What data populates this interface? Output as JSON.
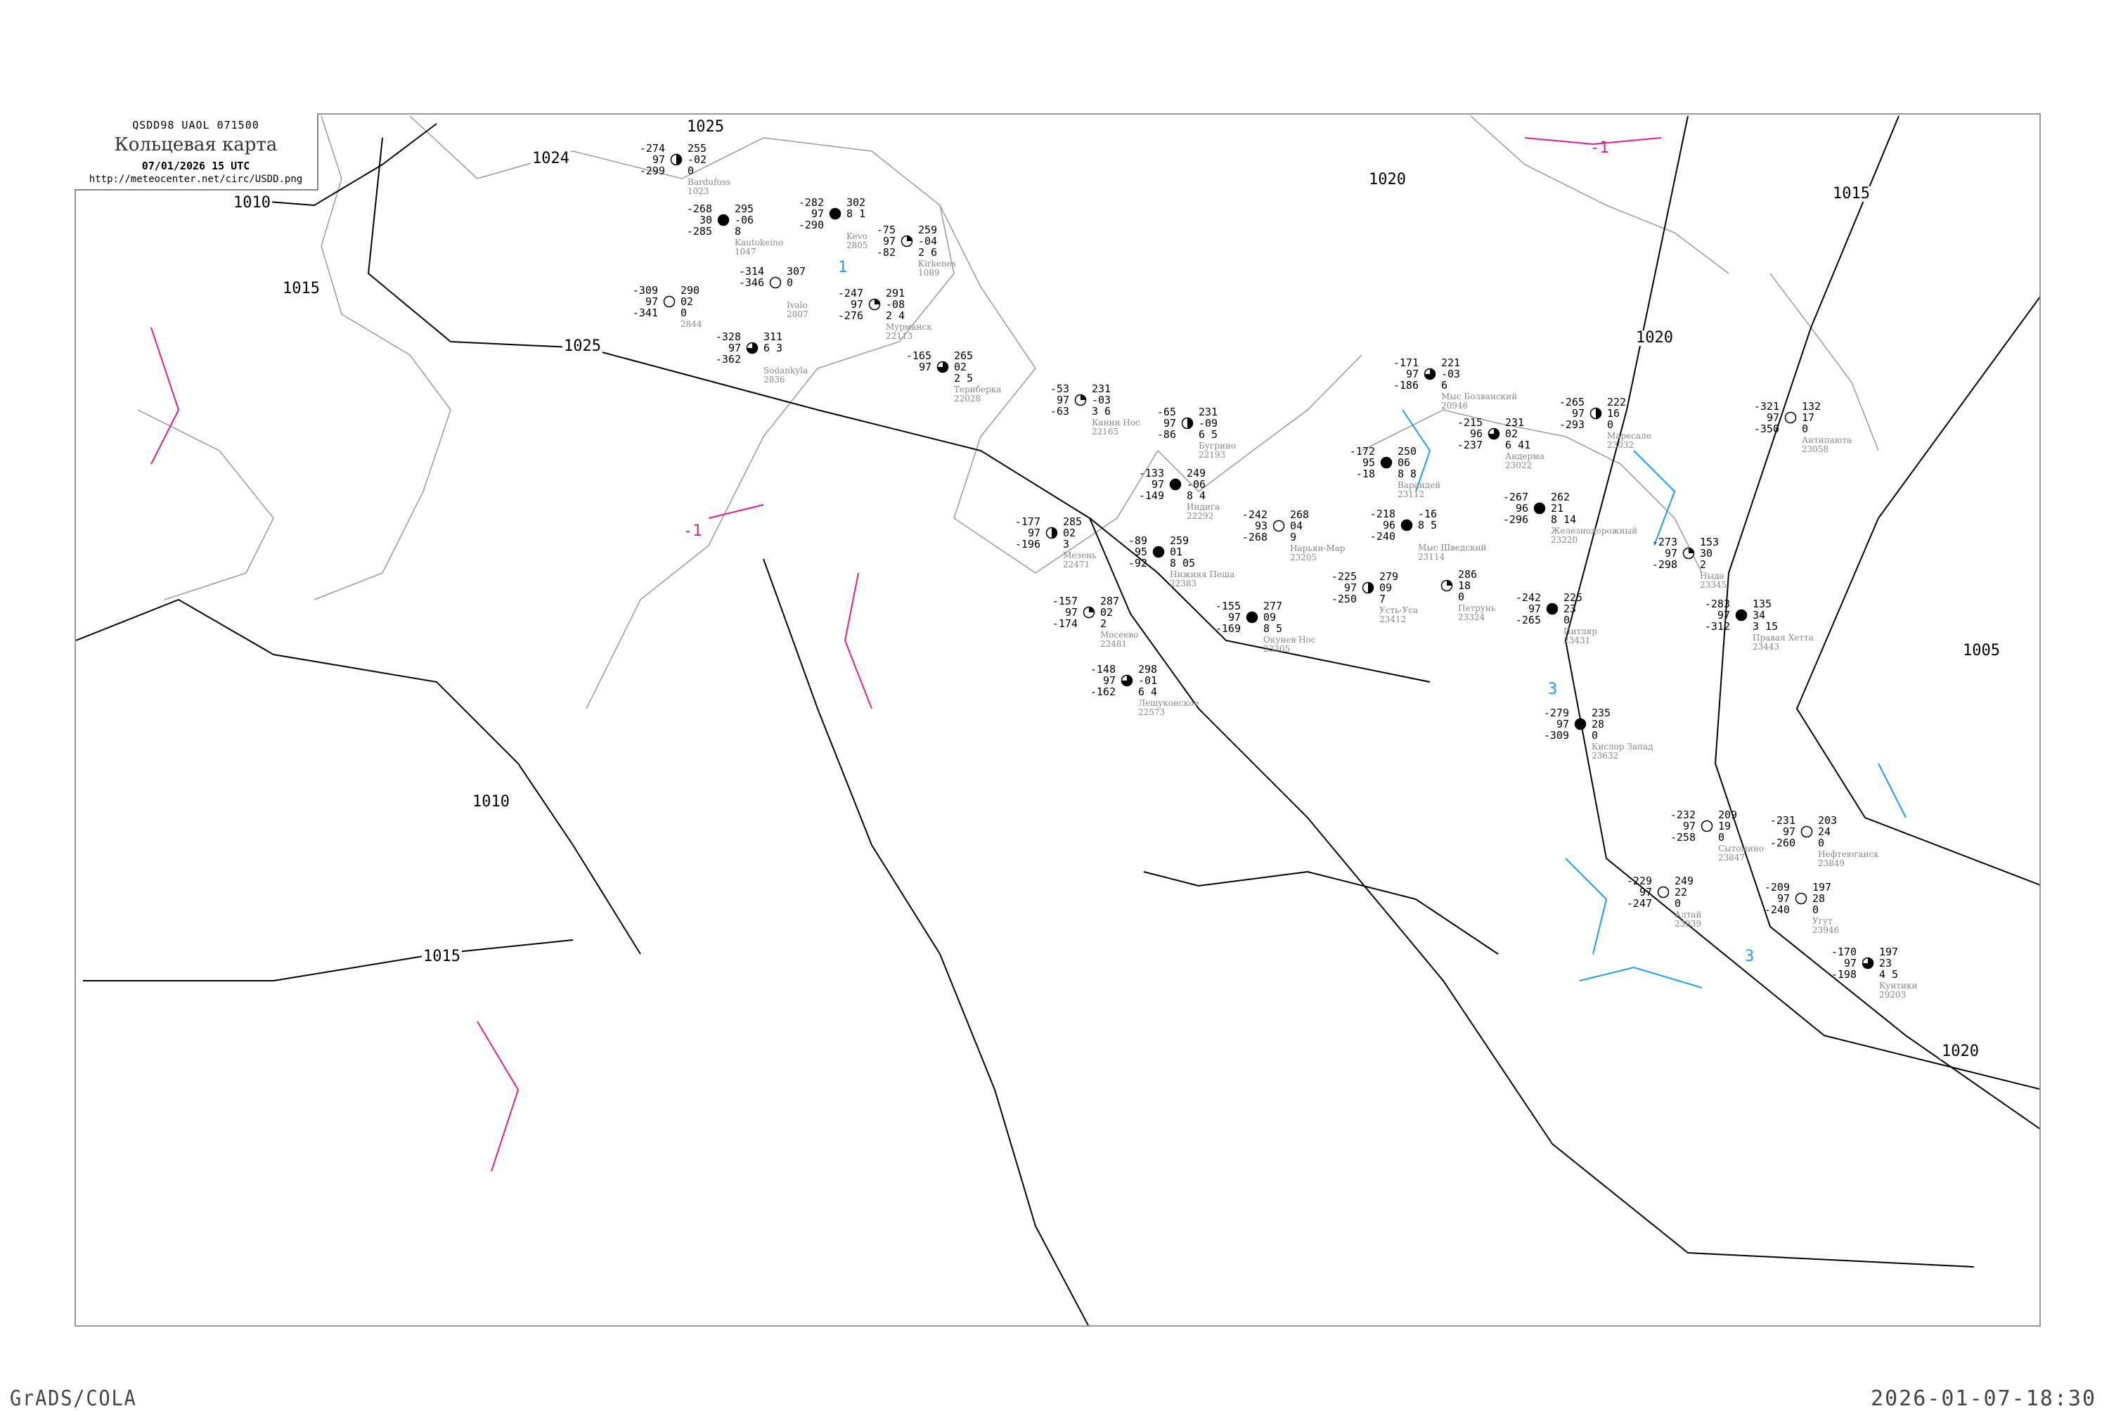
{
  "header": {
    "bulletin_code": "QSDD98   UAOL   071500",
    "title": "Кольцевая карта",
    "datetime": "07/01/2026 15 UTC",
    "url": "http://meteocenter.net/circ/USDD.png"
  },
  "footer": {
    "software": "GrADS/COLA",
    "generated": "2026-01-07-18:30"
  },
  "colors": {
    "isobar": "#000000",
    "coastline": "#9a9a9a",
    "isotherm_cold": "#1e9bff",
    "isotherm_warm": "#e0208a",
    "snow_marker": "#3a8ff0",
    "marker_yellow": "#f5f24a"
  },
  "isobar_labels": [
    "1025",
    "1020",
    "1015",
    "1010",
    "1015",
    "1025",
    "1020",
    "1005",
    "1015",
    "1020",
    "1024",
    "1010"
  ],
  "isotherm_labels": [
    "3",
    "1",
    "3",
    "-1",
    "-1"
  ],
  "stations": [
    {
      "name": "Мыс Болванский",
      "index": "20946",
      "left": [
        "-171",
        "97",
        "-186"
      ],
      "right": [
        "221",
        "-03",
        "6"
      ],
      "cloud": 0.75
    },
    {
      "name": "Андерма",
      "index": "23022",
      "left": [
        "-215",
        "96",
        "-237"
      ],
      "right": [
        "231",
        "02",
        "6 41"
      ],
      "cloud": 0.75
    },
    {
      "name": "Маресале",
      "index": "23032",
      "left": [
        "-265",
        "97",
        "-293"
      ],
      "right": [
        "222",
        "16",
        "0"
      ],
      "cloud": 0.5
    },
    {
      "name": "Варандей",
      "index": "23112",
      "left": [
        "-172",
        "95",
        "-18"
      ],
      "right": [
        "250",
        "06",
        "8 8"
      ],
      "cloud": 1
    },
    {
      "name": "Мыс Шведский",
      "index": "23114",
      "left": [
        "-218",
        "96",
        "-240"
      ],
      "right": [
        "",
        "-16",
        "8 5"
      ],
      "cloud": 1
    },
    {
      "name": "Железнодорожный",
      "index": "23220",
      "left": [
        "-267",
        "96",
        "-296"
      ],
      "right": [
        "262",
        "21",
        "8 14"
      ],
      "cloud": 1
    },
    {
      "name": "Антипаюта",
      "index": "23058",
      "left": [
        "-321",
        "97",
        "-350"
      ],
      "right": [
        "132",
        "17",
        "0"
      ],
      "cloud": 0
    },
    {
      "name": "Канин Нос",
      "index": "22165",
      "left": [
        "-53",
        "97",
        "-63"
      ],
      "right": [
        "231",
        "-03",
        "3 6"
      ],
      "cloud": 0.25
    },
    {
      "name": "Бугрино",
      "index": "22193",
      "left": [
        "-65",
        "97",
        "-86"
      ],
      "right": [
        "231",
        "-09",
        "6 5"
      ],
      "cloud": 0.5
    },
    {
      "name": "Индига",
      "index": "22292",
      "left": [
        "-133",
        "97",
        "-149"
      ],
      "right": [
        "249",
        "-06",
        "8 4"
      ],
      "cloud": 1
    },
    {
      "name": "Нижняя Пеша",
      "index": "22383",
      "left": [
        "-89",
        "95",
        "-92"
      ],
      "right": [
        "259",
        "01",
        "8 05"
      ],
      "cloud": 1
    },
    {
      "name": "Нарьян-Мар",
      "index": "23205",
      "left": [
        "-242",
        "93",
        "-268"
      ],
      "right": [
        "268",
        "04",
        "9"
      ],
      "cloud": 0
    },
    {
      "name": "Мезень",
      "index": "22471",
      "left": [
        "-177",
        "97",
        "-196"
      ],
      "right": [
        "285",
        "02",
        "3"
      ],
      "cloud": 0.5
    },
    {
      "name": "Мосеево",
      "index": "22481",
      "left": [
        "-157",
        "97",
        "-174"
      ],
      "right": [
        "287",
        "02",
        "2"
      ],
      "cloud": 0.25
    },
    {
      "name": "Окунев Нос",
      "index": "23305",
      "left": [
        "-155",
        "97",
        "-169"
      ],
      "right": [
        "277",
        "09",
        "8 5"
      ],
      "cloud": 1
    },
    {
      "name": "Усть-Уса",
      "index": "23412",
      "left": [
        "-225",
        "97",
        "-250"
      ],
      "right": [
        "279",
        "09",
        "7"
      ],
      "cloud": 0.5
    },
    {
      "name": "Лешуконское",
      "index": "22573",
      "left": [
        "-148",
        "97",
        "-162"
      ],
      "right": [
        "298",
        "-01",
        "6 4"
      ],
      "cloud": 0.75
    },
    {
      "name": "Петрунь",
      "index": "23324",
      "left": [
        "",
        "",
        ""
      ],
      "right": [
        "286",
        "18",
        "0"
      ],
      "cloud": 0.25
    },
    {
      "name": "Питляр",
      "index": "23431",
      "left": [
        "-242",
        "97",
        "-265"
      ],
      "right": [
        "225",
        "23",
        "0"
      ],
      "cloud": 1
    },
    {
      "name": "Ныда",
      "index": "23345",
      "left": [
        "-273",
        "97",
        "-298"
      ],
      "right": [
        "153",
        "30",
        "2"
      ],
      "cloud": 0.25
    },
    {
      "name": "Правая Хетта",
      "index": "23443",
      "left": [
        "-283",
        "97",
        "-312"
      ],
      "right": [
        "135",
        "34",
        "3 15"
      ],
      "cloud": 1
    },
    {
      "name": "Кислор Запад",
      "index": "23632",
      "left": [
        "-279",
        "97",
        "-309"
      ],
      "right": [
        "235",
        "28",
        "0"
      ],
      "cloud": 1
    },
    {
      "name": "Bardufoss",
      "index": "1023",
      "left": [
        "-274",
        "97",
        "-299"
      ],
      "right": [
        "255",
        "-02",
        "0"
      ],
      "cloud": 0.5
    },
    {
      "name": "Kautokeino",
      "index": "1047",
      "left": [
        "-268",
        "30",
        "-285"
      ],
      "right": [
        "295",
        "-06",
        "8"
      ],
      "cloud": 1
    },
    {
      "name": "Kevo",
      "index": "2805",
      "left": [
        "-282",
        "97",
        "-290"
      ],
      "right": [
        "302",
        "",
        "8 1"
      ],
      "cloud": 1
    },
    {
      "name": "Ivalo",
      "index": "2807",
      "left": [
        "-314",
        "",
        "-346"
      ],
      "right": [
        "307",
        "",
        "0"
      ],
      "cloud": 0
    },
    {
      "name": "Sodankyla",
      "index": "2836",
      "left": [
        "-328",
        "97",
        "-362"
      ],
      "right": [
        "311",
        "",
        "6 3"
      ],
      "cloud": 0.75
    },
    {
      "name": "",
      "index": "2844",
      "left": [
        "-309",
        "97",
        "-341"
      ],
      "right": [
        "290",
        "02",
        "0"
      ],
      "cloud": 0
    },
    {
      "name": "Мурманск",
      "index": "22113",
      "left": [
        "-247",
        "97",
        "-276"
      ],
      "right": [
        "291",
        "-08",
        "2 4"
      ],
      "cloud": 0.25
    },
    {
      "name": "Териберка",
      "index": "22028",
      "left": [
        "-165",
        "97",
        ""
      ],
      "right": [
        "265",
        "02",
        "2 5"
      ],
      "cloud": 0.75
    },
    {
      "name": "Kirkenes",
      "index": "1089",
      "left": [
        "-75",
        "97",
        "-82"
      ],
      "right": [
        "259",
        "-04",
        "2 6"
      ],
      "cloud": 0.25
    },
    {
      "name": "Сытомино",
      "index": "23847",
      "left": [
        "-232",
        "97",
        "-258"
      ],
      "right": [
        "209",
        "19",
        "0"
      ],
      "cloud": 0
    },
    {
      "name": "Нефтеюганск",
      "index": "23849",
      "left": [
        "-231",
        "97",
        "-260"
      ],
      "right": [
        "203",
        "24",
        "0"
      ],
      "cloud": 0
    },
    {
      "name": "Угут",
      "index": "23946",
      "left": [
        "-209",
        "97",
        "-240"
      ],
      "right": [
        "197",
        "28",
        "0"
      ],
      "cloud": 0
    },
    {
      "name": "Алтай",
      "index": "23939",
      "left": [
        "-229",
        "97",
        "-247"
      ],
      "right": [
        "249",
        "22",
        "0"
      ],
      "cloud": 0
    },
    {
      "name": "Кунтики",
      "index": "29203",
      "left": [
        "-170",
        "97",
        "-198"
      ],
      "right": [
        "197",
        "23",
        "4 5"
      ],
      "cloud": 0.75
    }
  ]
}
